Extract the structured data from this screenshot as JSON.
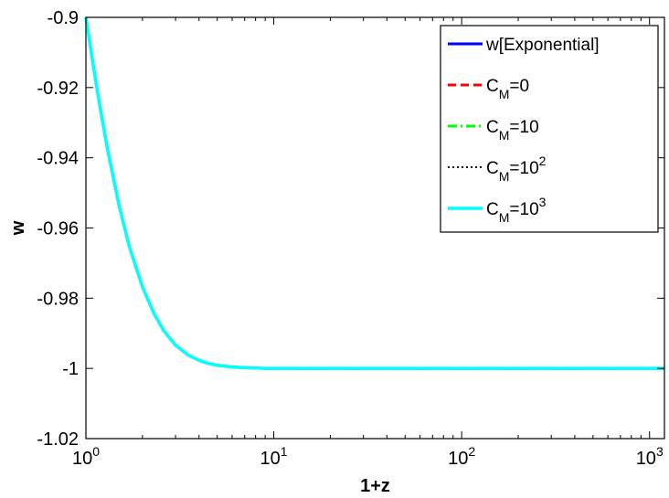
{
  "chart_data": {
    "type": "line",
    "xlabel": "1+z",
    "ylabel": "w",
    "xscale": "log",
    "xlim": [
      1,
      1200
    ],
    "ylim": [
      -1.02,
      -0.9
    ],
    "grid": false,
    "legend_position": "top-right",
    "x_ticks": [
      {
        "value": 1,
        "base": "10",
        "exp": "0"
      },
      {
        "value": 10,
        "base": "10",
        "exp": "1"
      },
      {
        "value": 100,
        "base": "10",
        "exp": "2"
      },
      {
        "value": 1000,
        "base": "10",
        "exp": "3"
      }
    ],
    "y_ticks": [
      {
        "value": -0.9,
        "label": "-0.9"
      },
      {
        "value": -0.92,
        "label": "-0.92"
      },
      {
        "value": -0.94,
        "label": "-0.94"
      },
      {
        "value": -0.96,
        "label": "-0.96"
      },
      {
        "value": -0.98,
        "label": "-0.98"
      },
      {
        "value": -1.0,
        "label": "-1"
      },
      {
        "value": -1.02,
        "label": "-1.02"
      }
    ],
    "x": [
      1.0,
      1.1,
      1.2,
      1.3,
      1.5,
      1.7,
      2.0,
      2.3,
      2.6,
      3.0,
      3.5,
      4.0,
      4.5,
      5.0,
      6.0,
      7.0,
      8.0,
      9.0,
      10,
      15,
      20,
      50,
      100,
      200,
      500,
      1000,
      1200
    ],
    "series": [
      {
        "legend": {
          "main": "w[Exponential]",
          "sub": "",
          "sup": ""
        },
        "color": "#0000ff",
        "dash": "solid",
        "width": 3,
        "values": [
          -0.9,
          -0.9145,
          -0.9268,
          -0.9372,
          -0.9535,
          -0.9652,
          -0.9768,
          -0.9843,
          -0.9893,
          -0.9934,
          -0.9962,
          -0.9977,
          -0.9986,
          -0.9991,
          -0.9996,
          -0.9998,
          -0.9999,
          -1.0,
          -1.0,
          -1.0,
          -1.0,
          -1.0,
          -1.0,
          -1.0,
          -1.0,
          -1.0,
          -1.0
        ]
      },
      {
        "legend": {
          "main": "C",
          "sub": "M",
          "post": "=0",
          "sup": ""
        },
        "color": "#ff0000",
        "dash": "dashed",
        "width": 3,
        "values": [
          -0.9,
          -0.9145,
          -0.9268,
          -0.9372,
          -0.9535,
          -0.9652,
          -0.9768,
          -0.9843,
          -0.9893,
          -0.9934,
          -0.9962,
          -0.9977,
          -0.9986,
          -0.9991,
          -0.9996,
          -0.9998,
          -0.9999,
          -1.0,
          -1.0,
          -1.0,
          -1.0,
          -1.0,
          -1.0,
          -1.0,
          -1.0,
          -1.0,
          -1.0
        ]
      },
      {
        "legend": {
          "main": "C",
          "sub": "M",
          "post": "=10",
          "sup": ""
        },
        "color": "#00ff00",
        "dash": "dashdot",
        "width": 3,
        "values": [
          -0.9,
          -0.9145,
          -0.9268,
          -0.9372,
          -0.9535,
          -0.9652,
          -0.9768,
          -0.9843,
          -0.9893,
          -0.9934,
          -0.9962,
          -0.9977,
          -0.9986,
          -0.9991,
          -0.9996,
          -0.9998,
          -0.9999,
          -1.0,
          -1.0,
          -1.0,
          -1.0,
          -1.0,
          -1.0,
          -1.0,
          -1.0,
          -1.0,
          -1.0
        ]
      },
      {
        "legend": {
          "main": "C",
          "sub": "M",
          "post": "=10",
          "sup": "2"
        },
        "color": "#000000",
        "dash": "dotted",
        "width": 2,
        "values": [
          -0.9,
          -0.9145,
          -0.9268,
          -0.9372,
          -0.9535,
          -0.9652,
          -0.9768,
          -0.9843,
          -0.9893,
          -0.9934,
          -0.9962,
          -0.9977,
          -0.9986,
          -0.9991,
          -0.9996,
          -0.9998,
          -0.9999,
          -1.0,
          -1.0,
          -1.0,
          -1.0,
          -1.0,
          -1.0,
          -1.0,
          -1.0,
          -1.0,
          -1.0
        ]
      },
      {
        "legend": {
          "main": "C",
          "sub": "M",
          "post": "=10",
          "sup": "3"
        },
        "color": "#00ffff",
        "dash": "solid",
        "width": 3.5,
        "values": [
          -0.9,
          -0.9145,
          -0.9268,
          -0.9372,
          -0.9535,
          -0.9652,
          -0.9768,
          -0.9843,
          -0.9893,
          -0.9934,
          -0.9962,
          -0.9977,
          -0.9986,
          -0.9991,
          -0.9996,
          -0.9998,
          -0.9999,
          -1.0,
          -1.0,
          -1.0,
          -1.0,
          -1.0,
          -1.0,
          -1.0,
          -1.0,
          -1.0,
          -1.0
        ]
      }
    ]
  }
}
